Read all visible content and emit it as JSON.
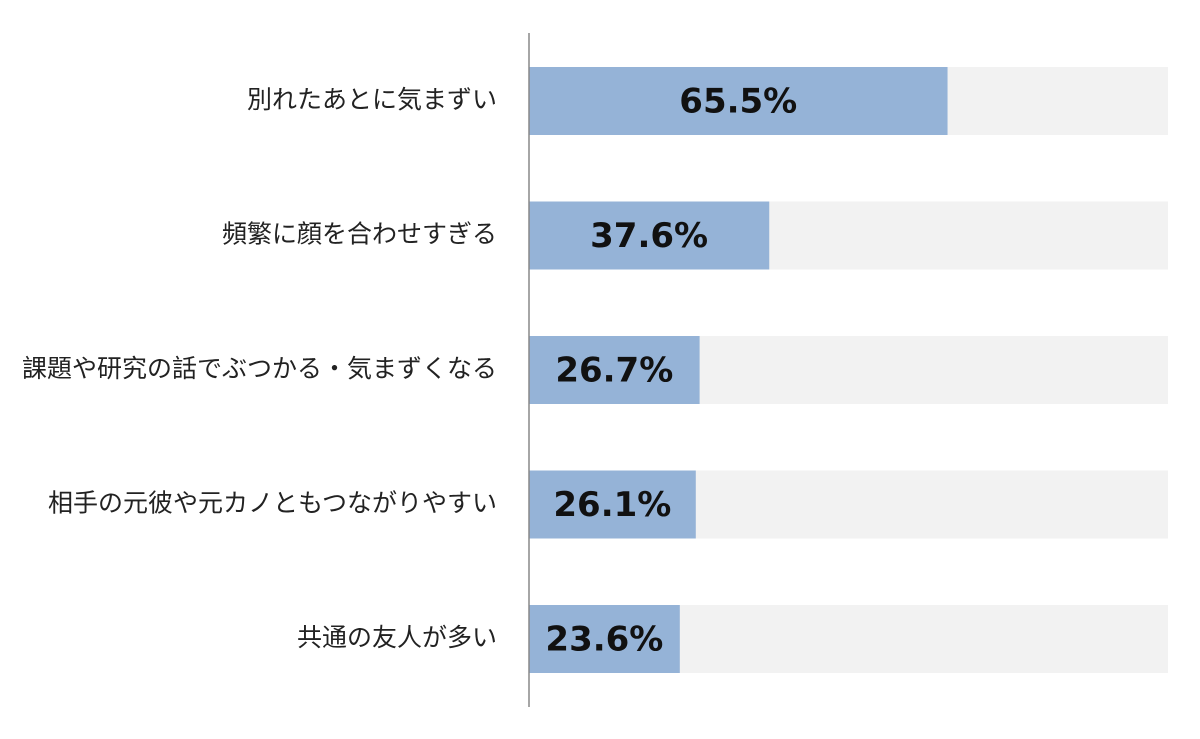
{
  "chart_data": {
    "type": "bar",
    "orientation": "horizontal",
    "categories": [
      "別れたあとに気まずい",
      "頻繁に顔を合わせすぎる",
      "課題や研究の話でぶつかる・気まずくなる",
      "相手の元彼や元カノともつながりやすい",
      "共通の友人が多い"
    ],
    "values": [
      65.5,
      37.6,
      26.7,
      26.1,
      23.6
    ],
    "value_labels": [
      "65.5%",
      "37.6%",
      "26.7%",
      "26.1%",
      "23.6%"
    ],
    "color": "#95b3d7",
    "background_color": "#f2f2f2",
    "xlim": [
      0,
      100
    ]
  }
}
